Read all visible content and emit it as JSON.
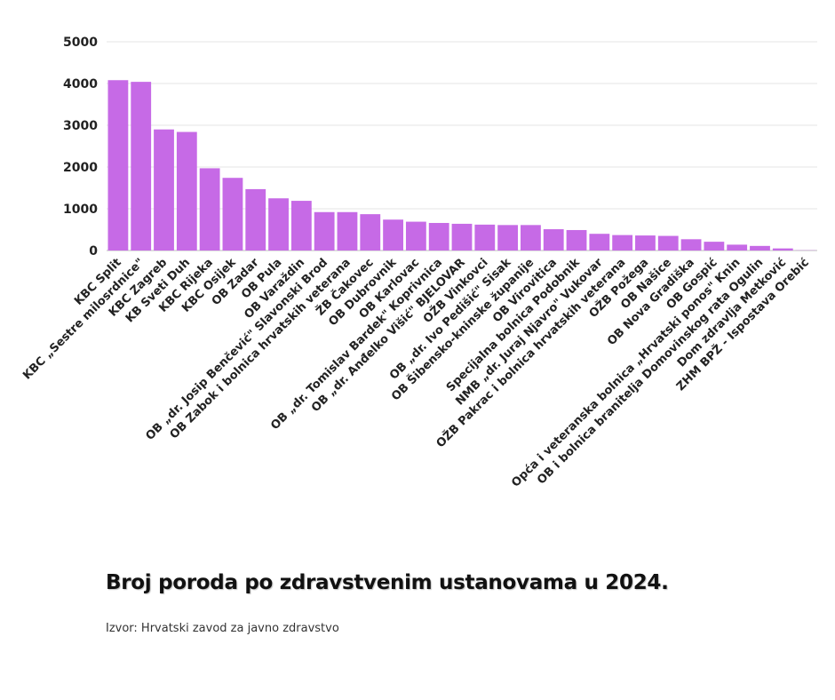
{
  "chart_data": {
    "type": "bar",
    "title": "Broj poroda po zdravstvenim ustanovama u 2024.",
    "source": "Izvor: Hrvatski zavod za javno zdravstvo",
    "xlabel": "",
    "ylabel": "",
    "ylim": [
      0,
      5000
    ],
    "yticks": [
      "0",
      "1000",
      "2000",
      "3000",
      "4000",
      "5000"
    ],
    "grid": true,
    "bar_color": "#c66ae6",
    "categories": [
      "KBC Split",
      "KBC „Sestre milosrdnice\"",
      "KBC Zagreb",
      "KB Sveti Duh",
      "KBC Rijeka",
      "KBC Osijek",
      "OB Zadar",
      "OB Pula",
      "OB Varaždin",
      "OB „dr. Josip Benčević\" Slavonski Brod",
      "OB Zabok i bolnica hrvatskih veterana",
      "ŽB Čakovec",
      "OB Dubrovnik",
      "OB Karlovac",
      "OB „dr. Tomislav Bardek\" Koprivnica",
      "OB „dr. Anđelko Višić\" BJELOVAR",
      "OŽB Vinkovci",
      "OB „dr. Ivo Pedišić\" Sisak",
      "OB Šibensko-kninske županije",
      "OB Virovitica",
      "Specijalna bolnica Podobnik",
      "NMB „dr. Juraj Njavro\" Vukovar",
      "OŽB Pakrac i bolnica hrvatskih veterana",
      "OŽB Požega",
      "OB Našice",
      "OB Nova Gradiška",
      "OB Gospić",
      "Opća i veteranska bolnica „Hrvatski ponos\" Knin",
      "OB i bolnica branitelja Domovinskog rata Ogulin",
      "Dom zdravlja Metković",
      "ZHM BPŽ - Ispostava Orebić"
    ],
    "values": [
      4080,
      4040,
      2900,
      2840,
      1970,
      1740,
      1470,
      1250,
      1190,
      920,
      920,
      870,
      740,
      690,
      660,
      640,
      620,
      610,
      610,
      510,
      490,
      400,
      370,
      360,
      350,
      270,
      210,
      140,
      110,
      50,
      5
    ]
  }
}
